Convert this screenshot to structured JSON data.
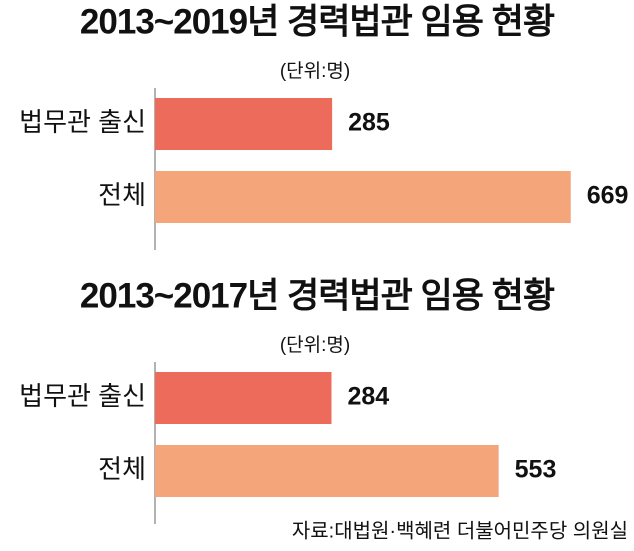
{
  "chart_data": [
    {
      "type": "bar",
      "orientation": "horizontal",
      "title": "2013~2019년 경력법관 임용 현황",
      "unit": "(단위:명)",
      "categories": [
        "법무관 출신",
        "전체"
      ],
      "values": [
        285,
        669
      ],
      "colors": [
        "#ec6b5b",
        "#f4a57a"
      ],
      "xlim": [
        0,
        700
      ]
    },
    {
      "type": "bar",
      "orientation": "horizontal",
      "title": "2013~2017년 경력법관 임용 현황",
      "unit": "(단위:명)",
      "categories": [
        "법무관 출신",
        "전체"
      ],
      "values": [
        284,
        553
      ],
      "colors": [
        "#ec6b5b",
        "#f4a57a"
      ],
      "xlim": [
        0,
        700
      ]
    }
  ],
  "source": "자료:대법원·백혜련 더불어민주당 의원실"
}
